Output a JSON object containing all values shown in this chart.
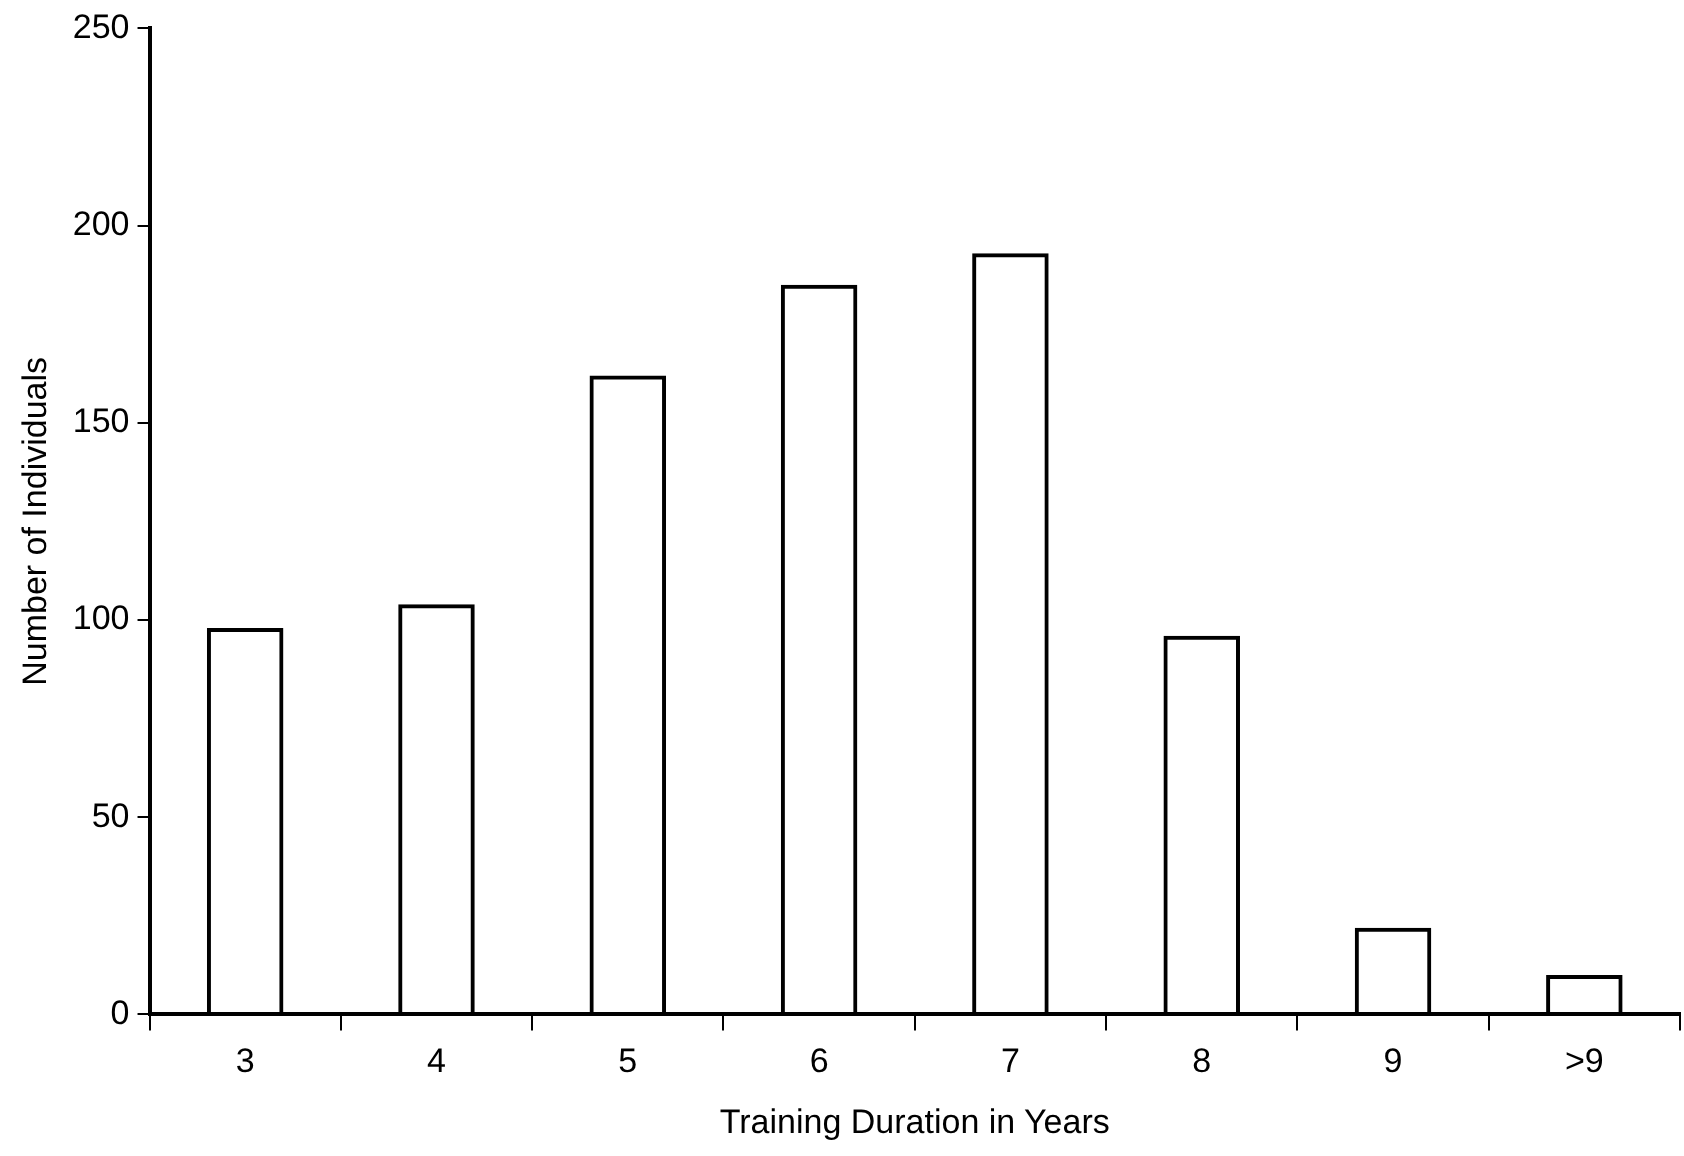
{
  "chart_data": {
    "type": "bar",
    "xlabel": "Training Duration in Years",
    "ylabel": "Number of Individuals",
    "categories": [
      "3",
      "4",
      "5",
      "6",
      "7",
      "8",
      "9",
      ">9"
    ],
    "values": [
      98,
      104,
      162,
      185,
      193,
      96,
      22,
      10
    ],
    "color": "#000000",
    "ylim": [
      0,
      250
    ],
    "yticks": [
      0,
      50,
      100,
      150,
      200,
      250
    ],
    "grid": false,
    "legend": false
  }
}
